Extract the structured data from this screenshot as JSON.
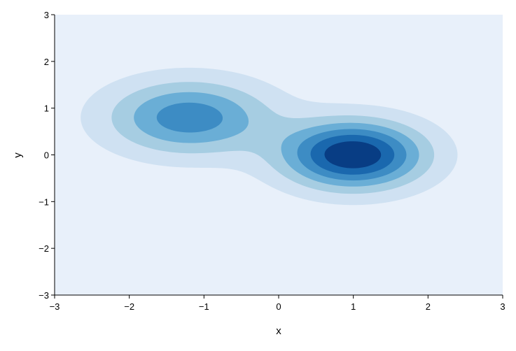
{
  "chart_data": {
    "type": "contour",
    "xlabel": "x",
    "ylabel": "y",
    "xlim": [
      -3,
      3
    ],
    "ylim": [
      -3,
      3
    ],
    "xticks": [
      {
        "value": -3,
        "label": "−3"
      },
      {
        "value": -2,
        "label": "−2"
      },
      {
        "value": -1,
        "label": "−1"
      },
      0,
      1,
      2,
      3
    ],
    "yticks": [
      {
        "value": -3,
        "label": "−3"
      },
      {
        "value": -2,
        "label": "−2"
      },
      {
        "value": -1,
        "label": "−1"
      },
      0,
      1,
      2,
      3
    ],
    "components": [
      {
        "center": [
          1,
          0
        ],
        "sigma": [
          0.65,
          0.5
        ],
        "weight": 1
      },
      {
        "center": [
          -1.2,
          0.8
        ],
        "sigma": [
          0.75,
          0.55
        ],
        "weight": 0.65
      }
    ],
    "levels": [
      0.1,
      0.25,
      0.4,
      0.55,
      0.7,
      0.85
    ],
    "colors": [
      "#cfe1f2",
      "#a6cde2",
      "#6aaed6",
      "#3d8cc4",
      "#1a68ae",
      "#083d84"
    ],
    "background": "#e8f0fa"
  }
}
